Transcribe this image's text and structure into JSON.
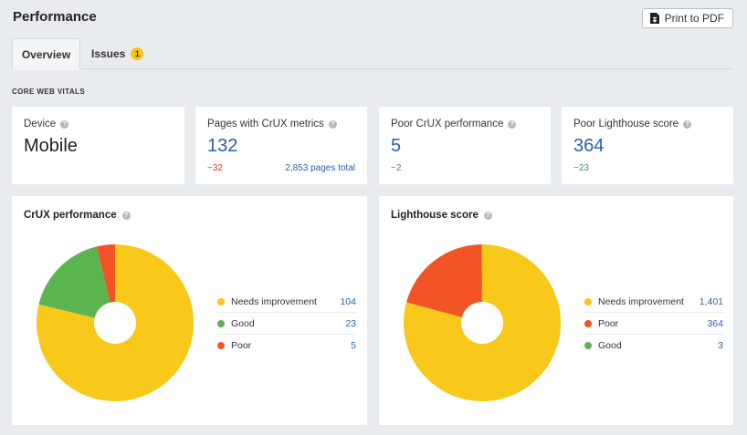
{
  "header": {
    "title": "Performance",
    "print_label": "Print to PDF"
  },
  "tabs": [
    {
      "label": "Overview",
      "active": true
    },
    {
      "label": "Issues",
      "badge": "1"
    }
  ],
  "section_label": "CORE WEB VITALS",
  "metrics": [
    {
      "title": "Device",
      "value": "Mobile"
    },
    {
      "title": "Pages with CrUX metrics",
      "value": "132",
      "delta": "−32",
      "total": "2,853 pages total"
    },
    {
      "title": "Poor CrUX performance",
      "value": "5",
      "delta": "−2"
    },
    {
      "title": "Poor Lighthouse score",
      "value": "364",
      "delta": "−23"
    }
  ],
  "colors": {
    "needs_improvement": "#f8c81a",
    "good": "#5cb451",
    "poor": "#f35426",
    "link_blue": "#2c5ea8"
  },
  "chart_data": [
    {
      "type": "pie",
      "title": "CrUX performance",
      "legend": "right",
      "slices": [
        {
          "label": "Needs improvement",
          "value": 104,
          "display": "104",
          "color": "#f8c81a"
        },
        {
          "label": "Good",
          "value": 23,
          "display": "23",
          "color": "#5cb451"
        },
        {
          "label": "Poor",
          "value": 5,
          "display": "5",
          "color": "#f35426"
        }
      ]
    },
    {
      "type": "pie",
      "title": "Lighthouse score",
      "legend": "right",
      "slices": [
        {
          "label": "Needs improvement",
          "value": 1401,
          "display": "1,401",
          "color": "#f8c81a"
        },
        {
          "label": "Poor",
          "value": 364,
          "display": "364",
          "color": "#f35426"
        },
        {
          "label": "Good",
          "value": 3,
          "display": "3",
          "color": "#5cb451"
        }
      ]
    }
  ]
}
